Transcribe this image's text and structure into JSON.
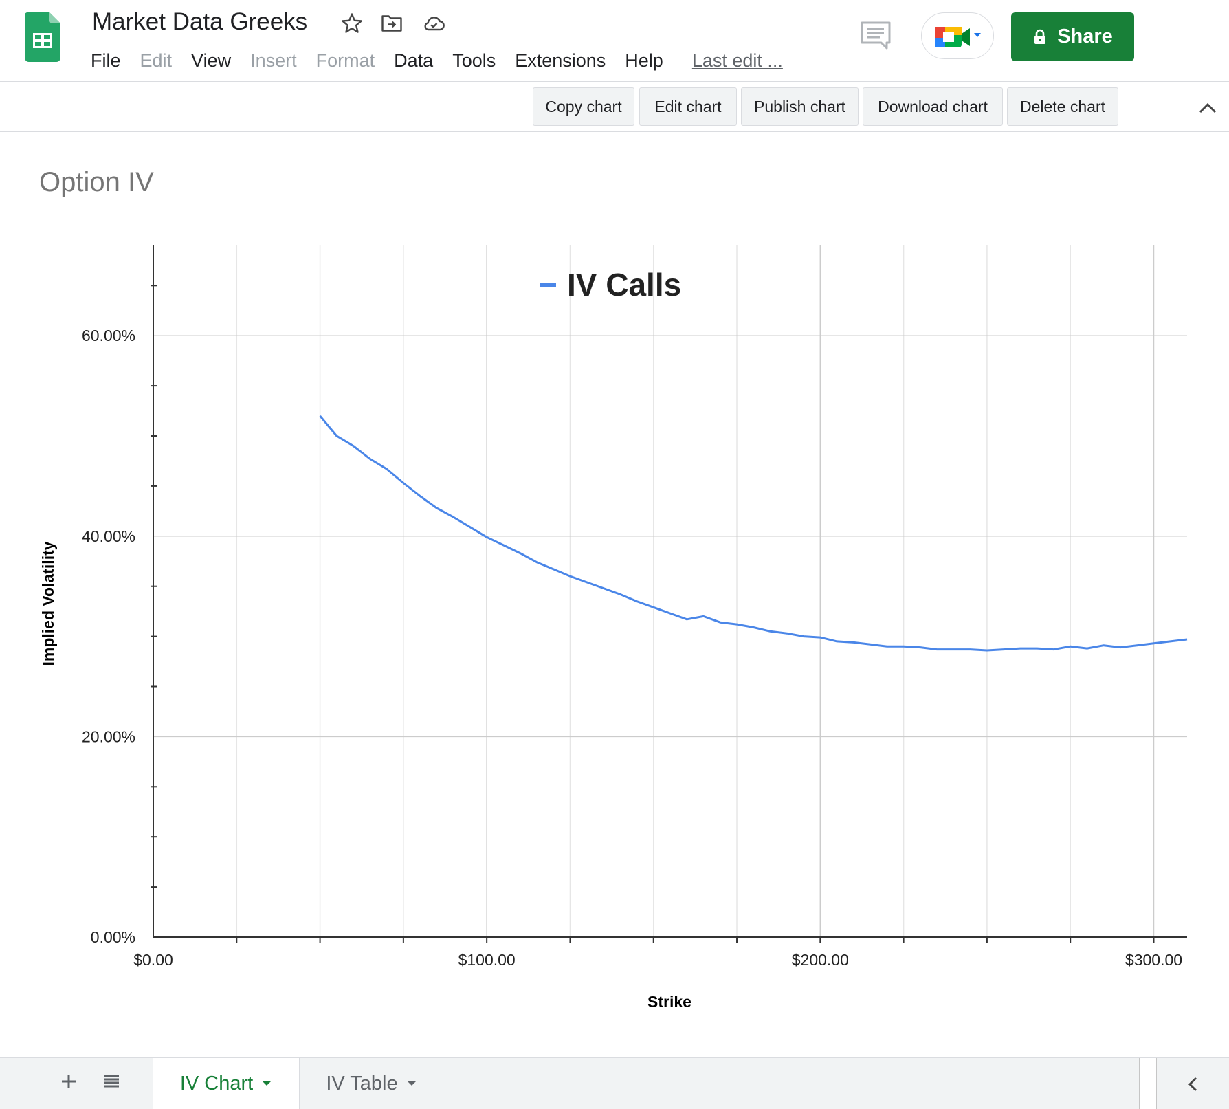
{
  "app": {
    "title": "Market Data Greeks",
    "brand_color": "#188038",
    "icons": [
      "sheets-logo-icon",
      "star-icon",
      "move-folder-icon",
      "cloud-saved-icon",
      "comments-icon",
      "meet-icon",
      "lock-icon"
    ]
  },
  "menu": {
    "items": [
      {
        "label": "File",
        "enabled": true
      },
      {
        "label": "Edit",
        "enabled": false
      },
      {
        "label": "View",
        "enabled": true
      },
      {
        "label": "Insert",
        "enabled": false
      },
      {
        "label": "Format",
        "enabled": false
      },
      {
        "label": "Data",
        "enabled": true
      },
      {
        "label": "Tools",
        "enabled": true
      },
      {
        "label": "Extensions",
        "enabled": true
      },
      {
        "label": "Help",
        "enabled": true
      }
    ],
    "last_edit": "Last edit ..."
  },
  "share": {
    "label": "Share"
  },
  "chart_toolbar": {
    "copy": "Copy chart",
    "edit": "Edit chart",
    "publish": "Publish chart",
    "download": "Download chart",
    "delete": "Delete chart"
  },
  "chart_data": {
    "type": "line",
    "title": "Option IV",
    "xlabel": "Strike",
    "ylabel": "Implied Volatility",
    "xlim": [
      0,
      310
    ],
    "ylim": [
      0,
      0.69
    ],
    "x_ticks": [
      "$0.00",
      "$100.00",
      "$200.00",
      "$300.00"
    ],
    "x_tick_values": [
      0,
      100,
      200,
      300
    ],
    "y_ticks": [
      "0.00%",
      "20.00%",
      "40.00%",
      "60.00%"
    ],
    "y_tick_values": [
      0,
      0.2,
      0.4,
      0.6
    ],
    "x_gridlines": [
      25,
      50,
      75,
      100,
      125,
      150,
      175,
      200,
      225,
      250,
      275,
      300
    ],
    "y_minor_ticks": [
      0.05,
      0.1,
      0.15,
      0.25,
      0.3,
      0.35,
      0.45,
      0.5,
      0.55,
      0.65
    ],
    "grid": true,
    "legend_position": "top",
    "series": [
      {
        "name": "IV Calls",
        "color": "#4a86e8",
        "x": [
          50,
          55,
          60,
          65,
          70,
          75,
          80,
          85,
          90,
          95,
          100,
          105,
          110,
          115,
          120,
          125,
          130,
          135,
          140,
          145,
          150,
          155,
          160,
          165,
          170,
          175,
          180,
          185,
          190,
          195,
          200,
          205,
          210,
          215,
          220,
          225,
          230,
          235,
          240,
          245,
          250,
          255,
          260,
          265,
          270,
          275,
          280,
          285,
          290,
          295,
          300,
          305,
          310
        ],
        "values": [
          0.52,
          0.5,
          0.49,
          0.477,
          0.467,
          0.453,
          0.44,
          0.428,
          0.419,
          0.409,
          0.399,
          0.391,
          0.383,
          0.374,
          0.367,
          0.36,
          0.354,
          0.348,
          0.342,
          0.335,
          0.329,
          0.323,
          0.317,
          0.32,
          0.314,
          0.312,
          0.309,
          0.305,
          0.303,
          0.3,
          0.299,
          0.295,
          0.294,
          0.292,
          0.29,
          0.29,
          0.289,
          0.287,
          0.287,
          0.287,
          0.286,
          0.287,
          0.288,
          0.288,
          0.287,
          0.29,
          0.288,
          0.291,
          0.289,
          0.291,
          0.293,
          0.295,
          0.297
        ]
      }
    ]
  },
  "sheets": {
    "tabs": [
      {
        "label": "IV Chart",
        "active": true
      },
      {
        "label": "IV Table",
        "active": false
      }
    ]
  }
}
